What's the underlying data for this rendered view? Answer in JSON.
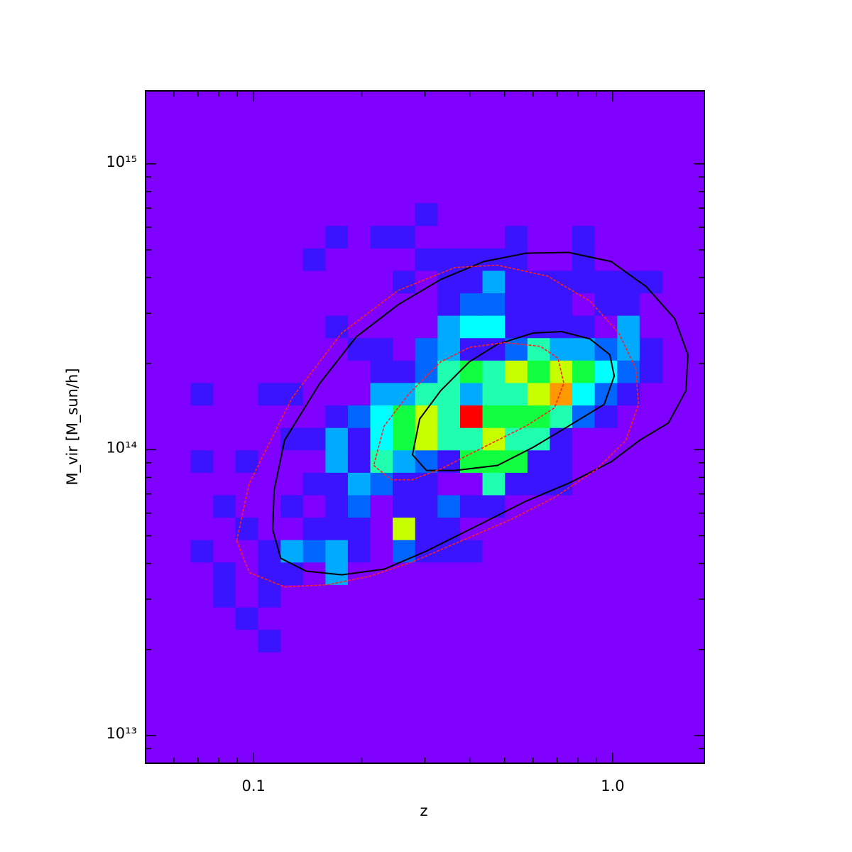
{
  "chart_data": {
    "type": "heatmap",
    "xlabel": "z",
    "ylabel": "M_vir [M_sun/h]",
    "xscale": "log",
    "yscale": "log",
    "xlim": [
      0.05,
      1.8
    ],
    "ylim": [
      8000000000000.0,
      1800000000000000.0
    ],
    "xticks": [
      0.1,
      {
        "value": 1,
        "label": "1.0"
      }
    ],
    "xticks_minor": [
      0.06,
      0.07,
      0.08,
      0.09,
      0.2,
      0.3,
      0.4,
      0.5,
      0.6,
      0.7,
      0.8,
      0.9
    ],
    "yticks": [
      {
        "value": 10000000000000.0,
        "label": "10¹³"
      },
      {
        "value": 100000000000000.0,
        "label": "10¹⁴"
      },
      {
        "value": 1000000000000000.0,
        "label": "10¹⁵"
      }
    ],
    "yticks_minor": [
      9000000000000.0,
      20000000000000.0,
      30000000000000.0,
      40000000000000.0,
      50000000000000.0,
      60000000000000.0,
      70000000000000.0,
      80000000000000.0,
      90000000000000.0,
      200000000000000.0,
      300000000000000.0,
      400000000000000.0,
      500000000000000.0,
      600000000000000.0,
      700000000000000.0,
      800000000000000.0,
      900000000000000.0
    ],
    "colors": [
      "#7f00ff",
      "#3a14ff",
      "#0066ff",
      "#00aaff",
      "#00ffff",
      "#20ffb0",
      "#10ff40",
      "#c8ff00",
      "#ff9900",
      "#ff0000"
    ],
    "xbins": [
      0.0668,
      0.0772,
      0.0891,
      0.1029,
      0.1189,
      0.1372,
      0.1585,
      0.183,
      0.2113,
      0.244,
      0.2818,
      0.3254,
      0.3758,
      0.4339,
      0.5012,
      0.5788,
      0.6683,
      0.7718,
      0.8913,
      1.0292,
      1.1885,
      1.3725
    ],
    "ybins": [
      19610000000000.0,
      23500000000000.0,
      28150000000000.0,
      33730000000000.0,
      40410000000000.0,
      48420000000000.0,
      58010000000000.0,
      69500000000000.0,
      83270000000000.0,
      99770000000000.0,
      119500000000000.0,
      143200000000000.0,
      171600000000000.0,
      205600000000000.0,
      246300000000000.0,
      295100000000000.0,
      353600000000000.0,
      423600000000000.0,
      507500000000000.0,
      608100000000000.0,
      728600000000000.0
    ],
    "counts": [
      [
        0,
        0,
        0,
        1,
        0,
        0,
        0,
        0,
        0,
        0,
        0,
        0,
        0,
        0,
        0,
        0,
        0,
        0,
        0,
        0,
        0
      ],
      [
        0,
        0,
        1,
        0,
        0,
        0,
        0,
        0,
        0,
        0,
        0,
        0,
        0,
        0,
        0,
        0,
        0,
        0,
        0,
        0,
        0
      ],
      [
        0,
        1,
        0,
        1,
        0,
        0,
        0,
        0,
        0,
        0,
        0,
        0,
        0,
        0,
        0,
        0,
        0,
        0,
        0,
        0,
        0
      ],
      [
        0,
        1,
        0,
        1,
        1,
        0,
        3,
        0,
        0,
        0,
        0,
        0,
        0,
        0,
        0,
        0,
        0,
        0,
        0,
        0,
        0
      ],
      [
        1,
        0,
        0,
        1,
        3,
        2,
        3,
        1,
        0,
        2,
        1,
        1,
        1,
        0,
        0,
        0,
        0,
        0,
        0,
        0,
        0
      ],
      [
        0,
        0,
        1,
        0,
        0,
        1,
        1,
        1,
        0,
        7,
        1,
        1,
        0,
        0,
        0,
        0,
        0,
        0,
        0,
        0,
        0
      ],
      [
        0,
        1,
        0,
        0,
        1,
        0,
        1,
        2,
        0,
        1,
        1,
        2,
        1,
        1,
        0,
        0,
        0,
        0,
        0,
        0,
        0
      ],
      [
        0,
        0,
        0,
        0,
        0,
        1,
        1,
        3,
        2,
        1,
        1,
        0,
        0,
        5,
        1,
        1,
        1,
        0,
        0,
        0,
        0
      ],
      [
        1,
        0,
        1,
        0,
        0,
        0,
        3,
        1,
        5,
        3,
        2,
        1,
        6,
        6,
        6,
        1,
        1,
        0,
        0,
        0,
        0
      ],
      [
        0,
        0,
        0,
        0,
        1,
        1,
        3,
        1,
        4,
        6,
        7,
        5,
        5,
        7,
        5,
        5,
        1,
        0,
        0,
        0,
        0
      ],
      [
        0,
        0,
        0,
        0,
        0,
        0,
        1,
        2,
        4,
        6,
        7,
        5,
        9,
        6,
        6,
        6,
        5,
        2,
        1,
        0,
        0
      ],
      [
        1,
        0,
        0,
        1,
        1,
        0,
        0,
        0,
        3,
        3,
        5,
        5,
        3,
        5,
        5,
        7,
        8,
        4,
        2,
        1,
        0
      ],
      [
        0,
        0,
        0,
        0,
        0,
        0,
        0,
        0,
        1,
        1,
        2,
        5,
        6,
        5,
        7,
        6,
        7,
        6,
        4,
        2,
        1
      ],
      [
        0,
        0,
        0,
        0,
        0,
        0,
        0,
        1,
        1,
        0,
        2,
        3,
        1,
        1,
        2,
        5,
        3,
        3,
        2,
        3,
        1
      ],
      [
        0,
        0,
        0,
        0,
        0,
        0,
        1,
        0,
        0,
        0,
        0,
        3,
        4,
        4,
        1,
        1,
        1,
        1,
        0,
        3,
        0
      ],
      [
        0,
        0,
        0,
        0,
        0,
        0,
        0,
        0,
        0,
        0,
        0,
        1,
        2,
        2,
        1,
        1,
        1,
        0,
        1,
        1,
        0
      ],
      [
        0,
        0,
        0,
        0,
        0,
        0,
        0,
        0,
        0,
        1,
        0,
        1,
        1,
        3,
        1,
        1,
        1,
        1,
        1,
        1,
        1
      ],
      [
        0,
        0,
        0,
        0,
        0,
        1,
        0,
        0,
        0,
        0,
        1,
        1,
        1,
        1,
        1,
        0,
        0,
        1,
        0,
        0,
        0
      ],
      [
        0,
        0,
        0,
        0,
        0,
        0,
        1,
        0,
        1,
        1,
        0,
        0,
        0,
        0,
        1,
        0,
        0,
        1,
        0,
        0,
        0
      ],
      [
        0,
        0,
        0,
        0,
        0,
        0,
        0,
        0,
        0,
        0,
        1,
        0,
        0,
        0,
        0,
        0,
        0,
        0,
        0,
        0,
        0
      ]
    ],
    "contours": [
      {
        "color": "#000000",
        "dash": "solid",
        "x": [
          0.113,
          0.119,
          0.14,
          0.176,
          0.231,
          0.303,
          0.437,
          0.574,
          0.754,
          0.991,
          1.19,
          1.43,
          1.6,
          1.62,
          1.49,
          1.24,
          0.991,
          0.754,
          0.574,
          0.437,
          0.332,
          0.253,
          0.193,
          0.153,
          0.122,
          0.114
        ],
        "y": [
          52500000000000.0,
          41700000000000.0,
          37600000000000.0,
          36500000000000.0,
          38200000000000.0,
          44200000000000.0,
          55600000000000.0,
          66100000000000.0,
          76300000000000.0,
          90700000000000.0,
          108000000000000.0,
          124000000000000.0,
          161000000000000.0,
          215000000000000.0,
          287000000000000.0,
          372000000000000.0,
          455000000000000.0,
          490000000000000.0,
          487000000000000.0,
          455000000000000.0,
          394000000000000.0,
          322000000000000.0,
          248000000000000.0,
          171000000000000.0,
          108000000000000.0,
          72000000000000.0
        ]
      },
      {
        "color": "#000000",
        "dash": "solid",
        "x": [
          0.277,
          0.303,
          0.364,
          0.478,
          0.601,
          0.754,
          0.947,
          1.01,
          0.982,
          0.865,
          0.721,
          0.601,
          0.478,
          0.399,
          0.332,
          0.29
        ],
        "y": [
          96000000000000.0,
          84600000000000.0,
          84600000000000.0,
          88100000000000.0,
          102000000000000.0,
          121000000000000.0,
          144000000000000.0,
          181000000000000.0,
          215000000000000.0,
          244000000000000.0,
          259000000000000.0,
          256000000000000.0,
          234000000000000.0,
          203000000000000.0,
          161000000000000.0,
          128000000000000.0
        ]
      },
      {
        "color": "#ff2020",
        "dash": "dashed",
        "x": [
          0.0897,
          0.0973,
          0.122,
          0.161,
          0.211,
          0.277,
          0.381,
          0.524,
          0.688,
          0.905,
          1.09,
          1.18,
          1.16,
          1.04,
          0.865,
          0.658,
          0.478,
          0.364,
          0.253,
          0.176,
          0.128,
          0.0973
        ],
        "y": [
          48100000000000.0,
          37200000000000.0,
          33100000000000.0,
          33700000000000.0,
          36100000000000.0,
          40500000000000.0,
          48100000000000.0,
          57200000000000.0,
          68000000000000.0,
          85600000000000.0,
          108000000000000.0,
          144000000000000.0,
          192000000000000.0,
          256000000000000.0,
          331000000000000.0,
          405000000000000.0,
          442000000000000.0,
          434000000000000.0,
          361000000000000.0,
          256000000000000.0,
          152000000000000.0,
          76300000000000.0
        ]
      },
      {
        "color": "#ff2020",
        "dash": "dashed",
        "x": [
          0.216,
          0.242,
          0.277,
          0.332,
          0.437,
          0.574,
          0.688,
          0.731,
          0.704,
          0.629,
          0.501,
          0.399,
          0.332,
          0.271,
          0.231
        ],
        "y": [
          88100000000000.0,
          78500000000000.0,
          78500000000000.0,
          85600000000000.0,
          102000000000000.0,
          121000000000000.0,
          140000000000000.0,
          171000000000000.0,
          209000000000000.0,
          230000000000000.0,
          237000000000000.0,
          228000000000000.0,
          203000000000000.0,
          157000000000000.0,
          121000000000000.0
        ]
      }
    ]
  }
}
